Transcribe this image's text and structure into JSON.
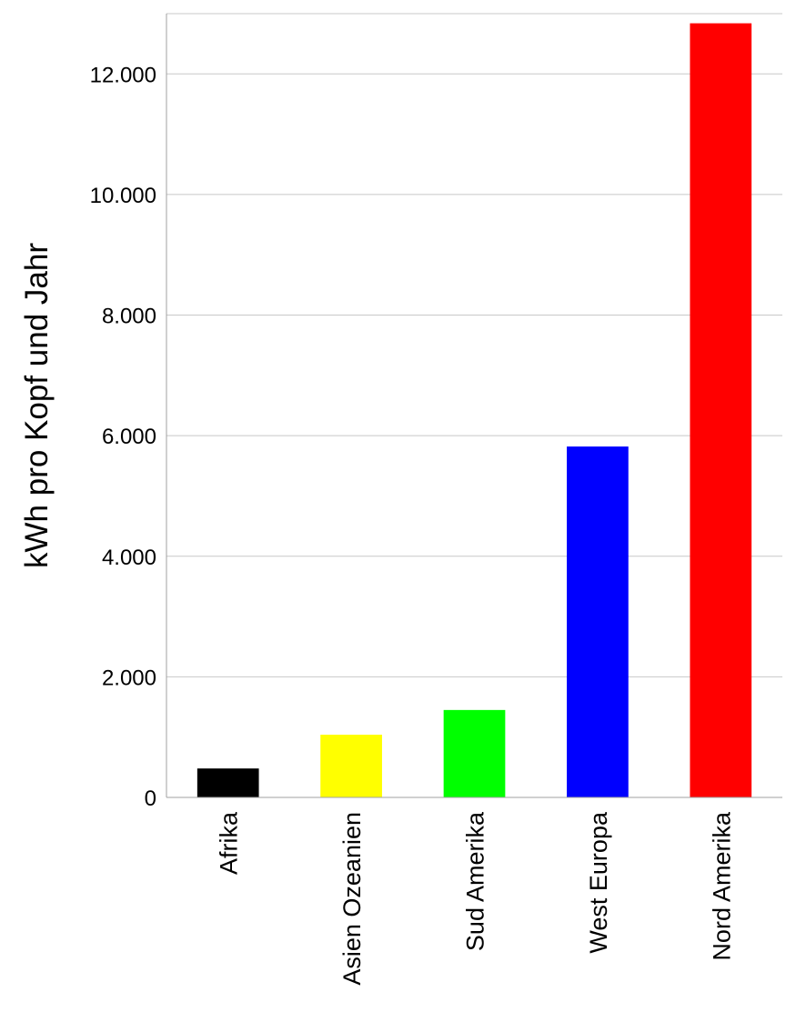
{
  "chart_data": {
    "type": "bar",
    "title": "",
    "xlabel": "",
    "ylabel": "kWh pro Kopf und Jahr",
    "categories": [
      "Afrika",
      "Asien Ozeanien",
      "Sud Amerika",
      "West  Europa",
      "Nord Amerika"
    ],
    "values": [
      480,
      1040,
      1450,
      5820,
      12840
    ],
    "colors": [
      "#000000",
      "#ffff00",
      "#00ff00",
      "#0000ff",
      "#ff0000"
    ],
    "ylim": [
      0,
      13000
    ],
    "yticks": [
      0,
      2000,
      4000,
      6000,
      8000,
      10000,
      12000
    ],
    "ytick_labels": [
      "0",
      "2.000",
      "4.000",
      "6.000",
      "8.000",
      "10.000",
      "12.000"
    ],
    "grid": true,
    "legend": "none"
  }
}
